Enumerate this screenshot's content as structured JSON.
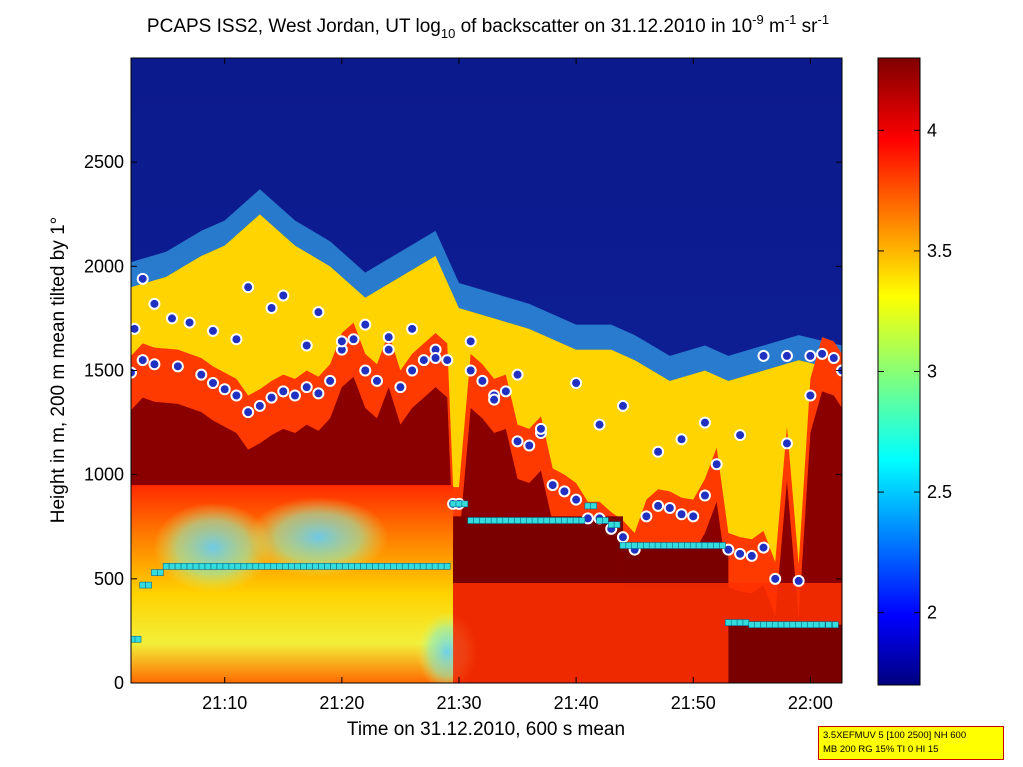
{
  "title": {
    "main": "PCAPS ISS2, West Jordan, UT log",
    "log_sub": "10",
    "middle": " of backscatter on 31.12.2010 in 10",
    "exp1": "-9",
    "unit1": " m",
    "exp2": "-1",
    "unit2": " sr",
    "exp3": "-1"
  },
  "info_box": {
    "line1": "3.5XEFMUV 5 [100 2500] NH 600",
    "line2": "MB 200 RG 15% TI 0 HI 15"
  },
  "colors": {
    "background_top": "#0b1a8c",
    "low_level": "#7a0000",
    "marker_fill": "#2030c0",
    "marker_edge": "#ffffff",
    "square_marker": "#33dddd",
    "info_box_bg": "#ffff00",
    "info_box_border": "#cc0000"
  },
  "chart_data": {
    "type": "heatmap",
    "xlabel": "Time on 31.12.2010, 600 s mean",
    "ylabel": "Height in m, 200 m mean tilted by 1°",
    "x_ticks": [
      "21:10",
      "21:20",
      "21:30",
      "21:40",
      "21:50",
      "22:00"
    ],
    "x_tick_minutes": [
      10,
      20,
      30,
      40,
      50,
      60
    ],
    "y_ticks": [
      0,
      500,
      1000,
      1500,
      2000,
      2500
    ],
    "xlim_minutes_after_21h": [
      2.0,
      62.7
    ],
    "ylim": [
      0,
      3000
    ],
    "colorbar": {
      "ticks": [
        2,
        2.5,
        3,
        3.5,
        4
      ],
      "range": [
        1.7,
        4.3
      ],
      "colormap": "jet"
    },
    "grid": false,
    "aerosol_top_profile": {
      "time": [
        2.0,
        5,
        8,
        10,
        13,
        16,
        19,
        22,
        25,
        28,
        30,
        33,
        36,
        40,
        43,
        45,
        48,
        51,
        53,
        56,
        59,
        62.7
      ],
      "height": [
        1900,
        1950,
        2050,
        2100,
        2250,
        2100,
        2000,
        1850,
        1950,
        2050,
        1800,
        1750,
        1700,
        1600,
        1600,
        1550,
        1450,
        1500,
        1450,
        1500,
        1550,
        1500
      ]
    },
    "boundary_layer_top": {
      "time": [
        2,
        3,
        4,
        6,
        8,
        9,
        10,
        11,
        12,
        13,
        14,
        15,
        16,
        17,
        18,
        19,
        20,
        21,
        22,
        23,
        24,
        25,
        26,
        27,
        28,
        29,
        29.5,
        30,
        31,
        32,
        33,
        34,
        35,
        36,
        37,
        38,
        39,
        40,
        41,
        42,
        43,
        44,
        45,
        46,
        47,
        48,
        49,
        50,
        51,
        52,
        53,
        54,
        55,
        56,
        57,
        58,
        59,
        60,
        61,
        62,
        62.7
      ],
      "height": [
        1490,
        1550,
        1530,
        1520,
        1480,
        1440,
        1410,
        1380,
        1300,
        1330,
        1370,
        1400,
        1380,
        1420,
        1390,
        1450,
        1600,
        1650,
        1500,
        1450,
        1600,
        1420,
        1500,
        1550,
        1600,
        1550,
        860,
        860,
        1500,
        1450,
        1380,
        1400,
        1160,
        1140,
        1200,
        950,
        920,
        880,
        790,
        790,
        740,
        700,
        640,
        800,
        850,
        840,
        810,
        800,
        900,
        1050,
        640,
        620,
        610,
        650,
        500,
        1150,
        490,
        1380,
        1580,
        1560,
        1500
      ]
    },
    "upper_markers": {
      "time": [
        2.3,
        3,
        4,
        5.5,
        7,
        9,
        11,
        12,
        14,
        15,
        17,
        18,
        20,
        22,
        24,
        26,
        28,
        31,
        33,
        35,
        37,
        40,
        42,
        44,
        47,
        49,
        51,
        54,
        56,
        58,
        60
      ],
      "height": [
        1700,
        1940,
        1820,
        1750,
        1730,
        1690,
        1650,
        1900,
        1800,
        1860,
        1620,
        1780,
        1640,
        1720,
        1660,
        1700,
        1560,
        1640,
        1360,
        1480,
        1220,
        1440,
        1240,
        1330,
        1110,
        1170,
        1250,
        1190,
        1570,
        1570,
        1570
      ]
    },
    "square_markers": {
      "time": [
        2.2,
        3,
        4,
        5,
        29.5,
        31,
        33,
        35,
        37,
        39,
        41,
        42,
        43,
        44,
        46,
        48,
        50,
        52,
        53,
        55,
        57,
        59,
        61,
        62.7
      ],
      "height": [
        210,
        470,
        530,
        560,
        860,
        780,
        780,
        780,
        780,
        780,
        850,
        780,
        760,
        660,
        660,
        660,
        660,
        660,
        290,
        280,
        280,
        280,
        280,
        280
      ]
    }
  }
}
